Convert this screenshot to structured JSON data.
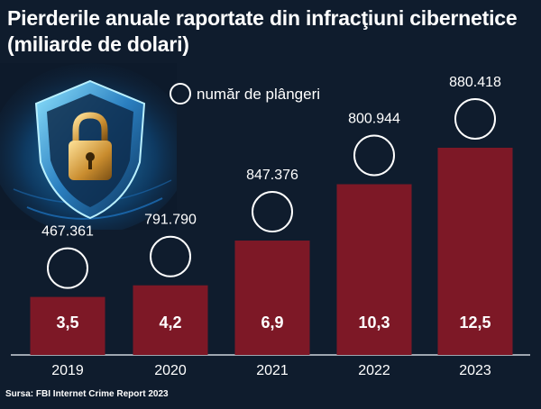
{
  "title": "Pierderile anuale raportate din infracţiuni cibernetice (miliarde de dolari)",
  "legend_label": "număr de plângeri",
  "source": "Sursa: FBI Internet Crime Report 2023",
  "colors": {
    "background": "#0f1c2d",
    "bar": "#7d1826",
    "text": "#ffffff",
    "axis": "#cdd3dc"
  },
  "chart_data": {
    "type": "bar",
    "categories": [
      "2019",
      "2020",
      "2021",
      "2022",
      "2023"
    ],
    "series": [
      {
        "values": [
          3.5,
          4.2,
          6.9,
          10.3,
          12.5
        ]
      },
      {
        "name": "număr de plângeri",
        "values": [
          467361,
          791790,
          847376,
          800944,
          880418
        ]
      }
    ],
    "value_labels": [
      "3,5",
      "4,2",
      "6,9",
      "10,3",
      "12,5"
    ],
    "complaint_labels": [
      "467.361",
      "791.790",
      "847.376",
      "800.944",
      "880.418"
    ],
    "ylim": [
      0,
      12.5
    ],
    "grid": false,
    "legend": "top-center"
  }
}
